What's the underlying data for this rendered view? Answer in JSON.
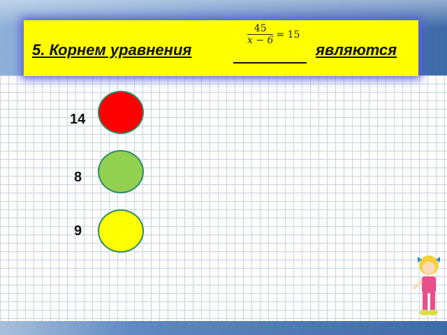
{
  "title": {
    "prefix": "5.  Корнем уравнения",
    "suffix": "являются",
    "equation": {
      "numerator": "45",
      "denominator": "x − 6",
      "rhs": "= 15"
    }
  },
  "options": [
    {
      "label": "14",
      "color": "#ff0000"
    },
    {
      "label": "8",
      "color": "#92d050"
    },
    {
      "label": "9",
      "color": "#ffff00"
    }
  ]
}
